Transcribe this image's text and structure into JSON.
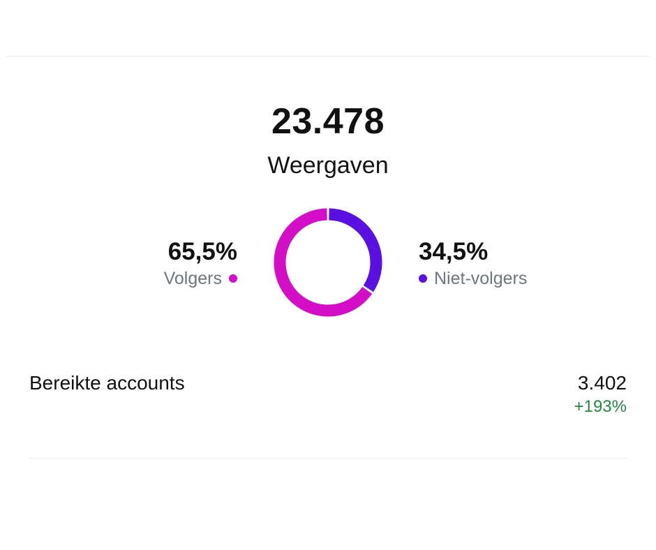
{
  "views": {
    "value": "23.478",
    "label": "Weergaven"
  },
  "breakdown": {
    "followers": {
      "percent": "65,5%",
      "label": "Volgers",
      "fraction": 0.655,
      "color": "#d40ec6"
    },
    "non_followers": {
      "percent": "34,5%",
      "label": "Niet-volgers",
      "fraction": 0.345,
      "color": "#5a10e0"
    }
  },
  "reached": {
    "label": "Bereikte accounts",
    "value": "3.402",
    "delta": "+193%",
    "delta_color": "#1f8a3b"
  },
  "text_color": "#111111",
  "muted_color": "#6e7681"
}
